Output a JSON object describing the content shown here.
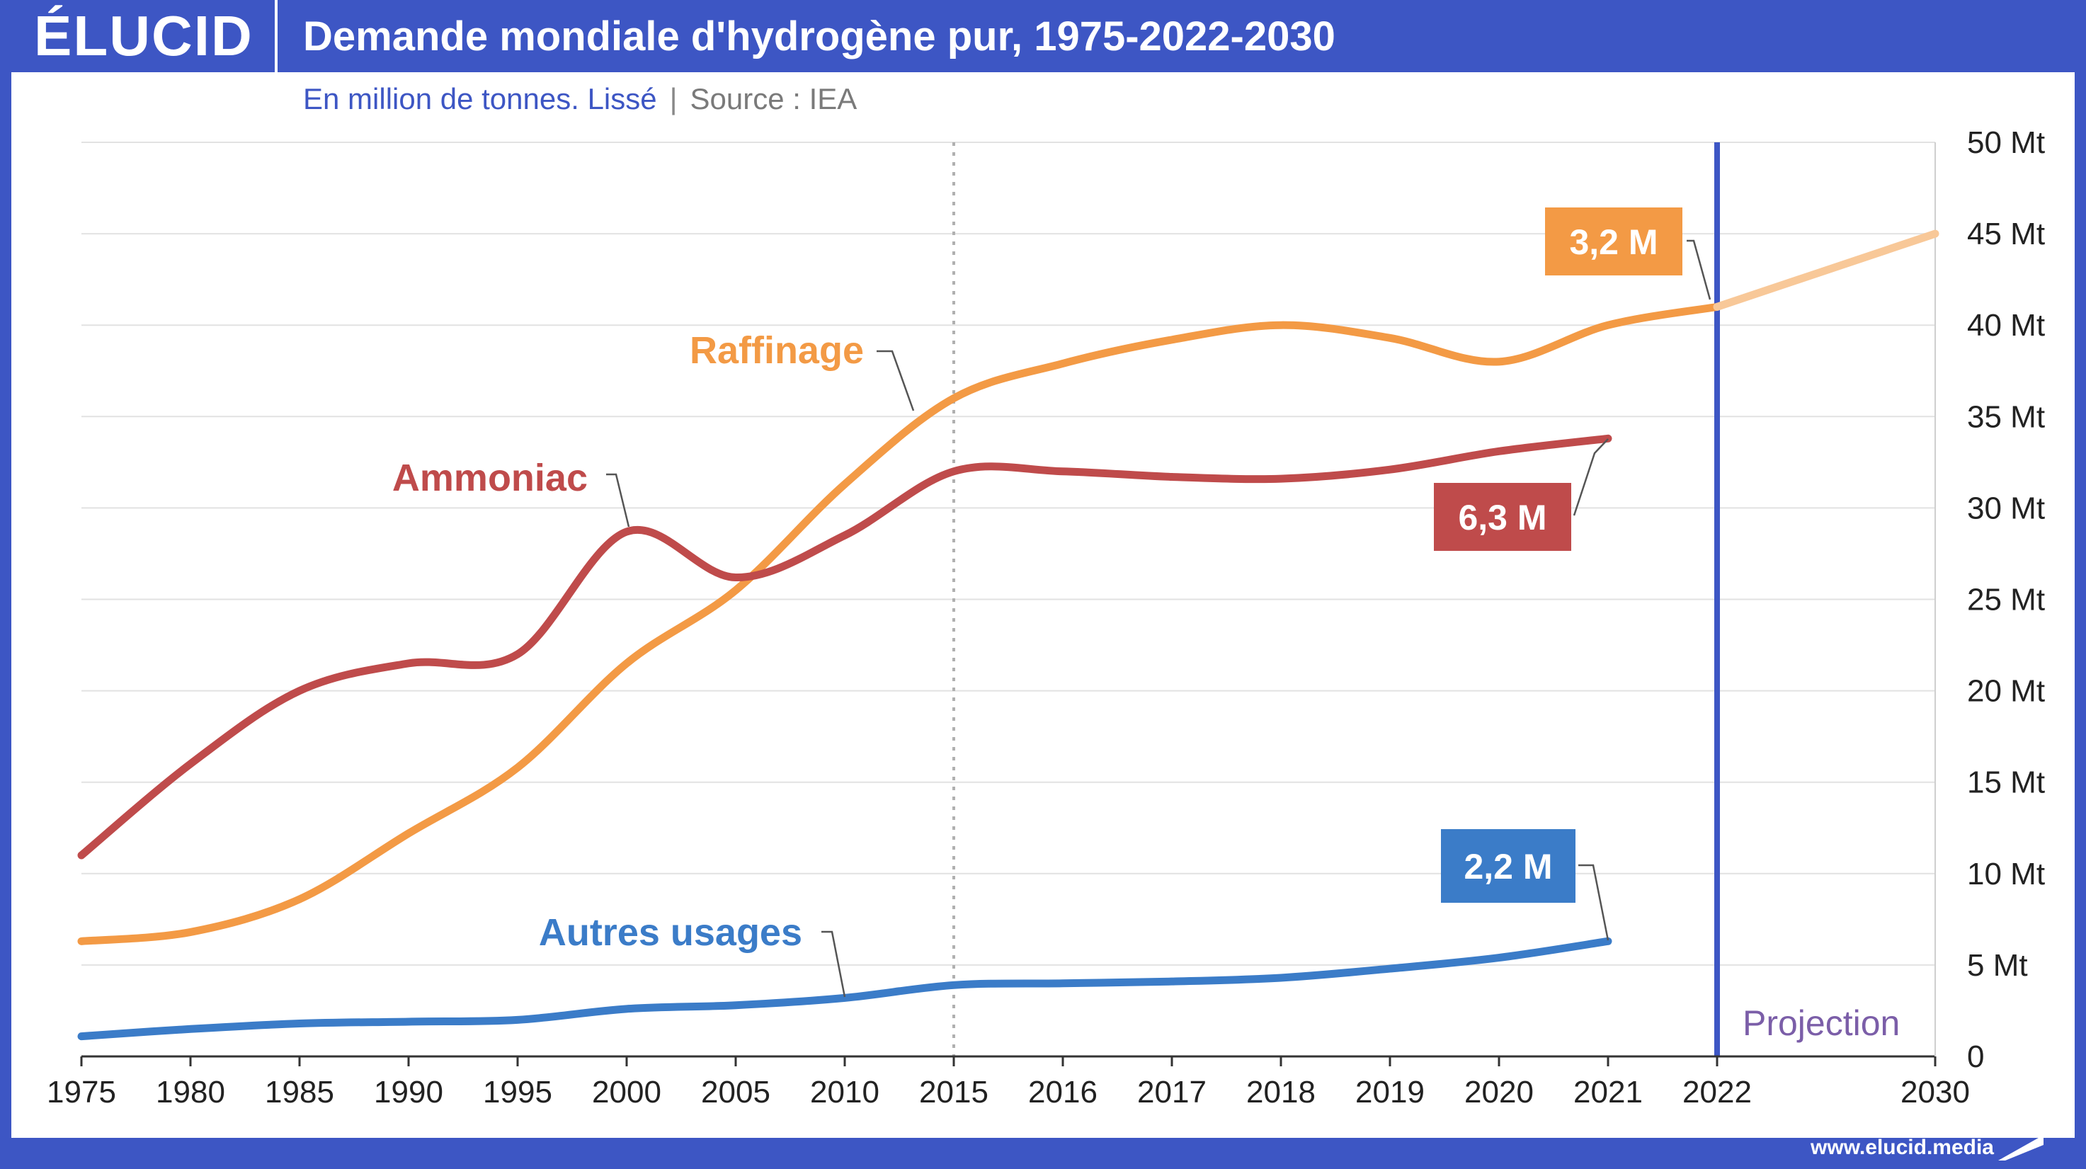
{
  "brand": {
    "logo_text": "ÉLUCID",
    "website": "www.elucid.media"
  },
  "title": "Demande mondiale d'hydrogène pur, 1975-2022-2030",
  "subtitle": {
    "units": "En million de tonnes. Lissé",
    "separator": "|",
    "source": "Source : IEA"
  },
  "colors": {
    "background": "#3d56c4",
    "raffinage": "#f39a45",
    "raffinage_projection": "#f8c898",
    "ammoniac": "#bf4b4b",
    "autres": "#3b7cc8",
    "projection_line": "#3d56c4",
    "projection_label": "#7b5ea8",
    "grid": "#e2e2e2",
    "marker_2015": "#b0b0b0"
  },
  "chart_data": {
    "type": "line",
    "title": "Demande mondiale d'hydrogène pur, 1975-2022-2030",
    "xlabel": "",
    "ylabel": "",
    "x": [
      "1975",
      "1980",
      "1985",
      "1990",
      "1995",
      "2000",
      "2005",
      "2010",
      "2015",
      "2016",
      "2017",
      "2018",
      "2019",
      "2020",
      "2021",
      "2022",
      "2030"
    ],
    "ylim": [
      0,
      50
    ],
    "y_ticks": [
      "0",
      "5 Mt",
      "10 Mt",
      "15 Mt",
      "20 Mt",
      "25 Mt",
      "30 Mt",
      "35 Mt",
      "40 Mt",
      "45 Mt",
      "50 Mt"
    ],
    "grid": true,
    "series": [
      {
        "name": "Raffinage",
        "key": "raffinage",
        "values": [
          6.3,
          6.8,
          8.6,
          12.2,
          15.8,
          21.5,
          25.5,
          31.3,
          36,
          37.9,
          39.2,
          40,
          39.3,
          38,
          40,
          41,
          null
        ]
      },
      {
        "name": "Ammoniac",
        "key": "ammoniac",
        "values": [
          11,
          16,
          20,
          21.5,
          22,
          28.7,
          26.2,
          28.5,
          32,
          32,
          31.7,
          31.6,
          32.1,
          33.1,
          33.8,
          null,
          null
        ]
      },
      {
        "name": "Autres usages",
        "key": "autres",
        "values": [
          1.1,
          1.5,
          1.8,
          1.9,
          2,
          2.6,
          2.8,
          3.2,
          3.9,
          4,
          4.1,
          4.3,
          4.8,
          5.4,
          6.3,
          null,
          null
        ]
      }
    ],
    "projection": {
      "series": "Raffinage",
      "from": "2022",
      "to": "2030",
      "values": [
        41,
        45
      ],
      "label": "Projection"
    },
    "vertical_markers": [
      {
        "x": "2015",
        "style": "dotted"
      },
      {
        "x": "2022",
        "style": "solid",
        "label": "Projection"
      }
    ],
    "annotations": [
      {
        "series": "Raffinage",
        "text": "3,2 M"
      },
      {
        "series": "Ammoniac",
        "text": "6,3 M"
      },
      {
        "series": "Autres usages",
        "text": "2,2 M"
      }
    ]
  }
}
